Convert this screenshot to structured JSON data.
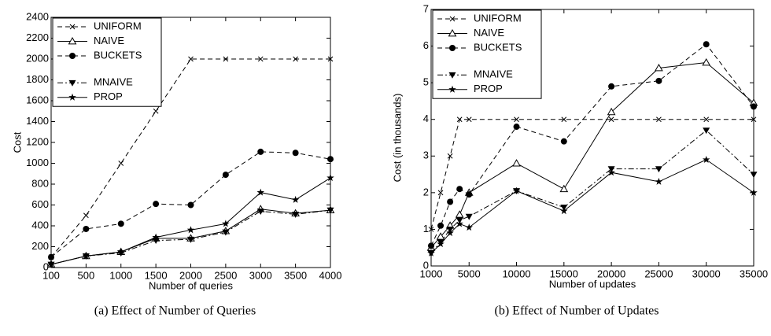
{
  "chart_data": [
    {
      "type": "line",
      "caption": "(a) Effect of Number of Queries",
      "xlabel": "Number of queries",
      "ylabel": "Cost",
      "categories": [
        "100",
        "500",
        "1000",
        "1500",
        "2000",
        "2500",
        "3000",
        "3500",
        "4000"
      ],
      "ylim": [
        0,
        2400
      ],
      "yticks": [
        0,
        200,
        400,
        600,
        800,
        1000,
        1200,
        1400,
        1600,
        1800,
        2000,
        2200,
        2400
      ],
      "legend": "upper left",
      "series": [
        {
          "name": "UNIFORM",
          "color": "#000000",
          "marker": "x",
          "line_style": "dashed",
          "values": [
            100,
            500,
            1000,
            1500,
            2000,
            2000,
            2000,
            2000,
            2000
          ]
        },
        {
          "name": "NAIVE",
          "color": "#000000",
          "marker": "triangle-open",
          "line_style": "solid",
          "values": [
            30,
            110,
            150,
            280,
            280,
            350,
            560,
            520,
            550
          ]
        },
        {
          "name": "BUCKETS",
          "color": "#000000",
          "marker": "circle",
          "line_style": "dashed",
          "values": [
            100,
            370,
            420,
            610,
            600,
            890,
            1110,
            1100,
            1040
          ]
        },
        {
          "name": "MNAIVE",
          "color": "#000000",
          "marker": "triangle-down",
          "line_style": "dashdot",
          "values": [
            30,
            110,
            140,
            260,
            270,
            340,
            540,
            510,
            550
          ]
        },
        {
          "name": "PROP",
          "color": "#000000",
          "marker": "star",
          "line_style": "solid",
          "values": [
            30,
            110,
            150,
            290,
            360,
            420,
            720,
            650,
            860
          ]
        }
      ]
    },
    {
      "type": "line",
      "caption": "(b) Effect of Number of Updates",
      "xlabel": "Number of updates",
      "ylabel": "Cost (in thousands)",
      "x": [
        1000,
        2000,
        3000,
        4000,
        5000,
        10000,
        15000,
        20000,
        25000,
        30000,
        35000
      ],
      "xlim": [
        1000,
        35000
      ],
      "xticks": [
        1000,
        5000,
        10000,
        15000,
        20000,
        25000,
        30000,
        35000
      ],
      "ylim": [
        0,
        7
      ],
      "yticks": [
        0,
        1,
        2,
        3,
        4,
        5,
        6,
        7
      ],
      "legend": "upper left",
      "series": [
        {
          "name": "UNIFORM",
          "color": "#000000",
          "marker": "x",
          "line_style": "dashed",
          "values": [
            1.0,
            2.0,
            3.0,
            4.0,
            4.0,
            4.0,
            4.0,
            4.0,
            4.0,
            4.0,
            4.0
          ]
        },
        {
          "name": "NAIVE",
          "color": "#000000",
          "marker": "triangle-open",
          "line_style": "solid",
          "values": [
            0.5,
            0.8,
            1.1,
            1.4,
            2.0,
            2.8,
            2.1,
            4.2,
            5.4,
            5.55,
            4.45
          ]
        },
        {
          "name": "BUCKETS",
          "color": "#000000",
          "marker": "circle",
          "line_style": "dashed",
          "values": [
            0.55,
            1.1,
            1.75,
            2.1,
            1.95,
            3.8,
            3.4,
            4.9,
            5.05,
            6.05,
            4.35
          ]
        },
        {
          "name": "MNAIVE",
          "color": "#000000",
          "marker": "triangle-down",
          "line_style": "dashdot",
          "values": [
            0.35,
            0.65,
            1.0,
            1.25,
            1.35,
            2.05,
            1.6,
            2.65,
            2.65,
            3.7,
            2.5
          ]
        },
        {
          "name": "PROP",
          "color": "#000000",
          "marker": "star",
          "line_style": "solid",
          "values": [
            0.35,
            0.6,
            0.9,
            1.15,
            1.05,
            2.05,
            1.5,
            2.55,
            2.3,
            2.9,
            2.0
          ]
        }
      ]
    }
  ]
}
